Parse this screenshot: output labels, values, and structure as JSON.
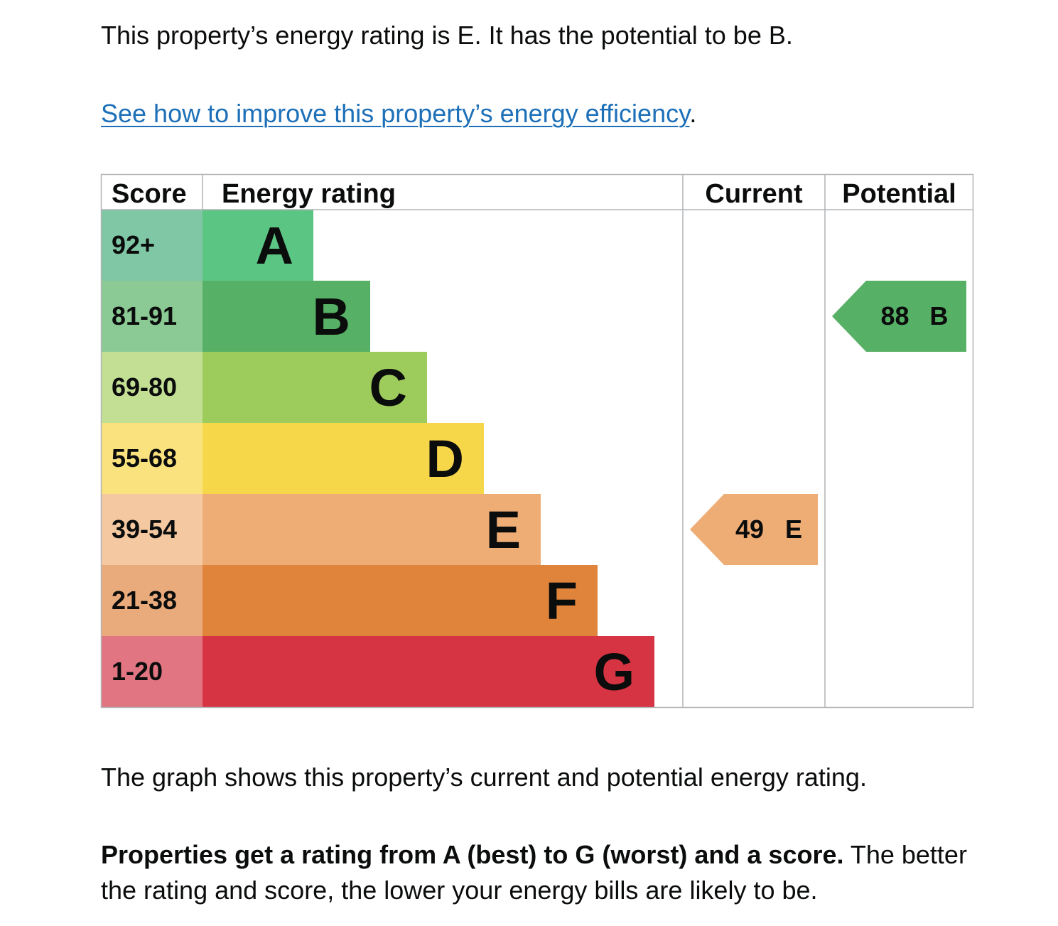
{
  "intro": "This property’s energy rating is E. It has the potential to be B.",
  "improve_link": {
    "text": "See how to improve this property’s energy efficiency",
    "suffix": "."
  },
  "graph_description": "The graph shows this property’s current and potential energy rating.",
  "explanation": {
    "bold": "Properties get a rating from A (best) to G (worst) and a score.",
    "rest": " The better the rating and score, the lower your energy bills are likely to be."
  },
  "chart_data": {
    "type": "table",
    "headers": [
      "Score",
      "Energy rating",
      "Current",
      "Potential"
    ],
    "bands": [
      {
        "letter": "A",
        "score": "92+",
        "color": "#5bc584",
        "score_color": "#80c7a5"
      },
      {
        "letter": "B",
        "score": "81-91",
        "color": "#56b065",
        "score_color": "#8bc995"
      },
      {
        "letter": "C",
        "score": "69-80",
        "color": "#9dcc5c",
        "score_color": "#c2df94"
      },
      {
        "letter": "D",
        "score": "55-68",
        "color": "#f7d74a",
        "score_color": "#fae27e"
      },
      {
        "letter": "E",
        "score": "39-54",
        "color": "#efad76",
        "score_color": "#f4c8a1"
      },
      {
        "letter": "F",
        "score": "21-38",
        "color": "#e0843b",
        "score_color": "#e9ab7c"
      },
      {
        "letter": "G",
        "score": "1-20",
        "color": "#d63442",
        "score_color": "#e27582"
      }
    ],
    "current": {
      "score": "49",
      "letter": "E",
      "color": "#efad76"
    },
    "potential": {
      "score": "88",
      "letter": "B",
      "color": "#56b065"
    }
  }
}
